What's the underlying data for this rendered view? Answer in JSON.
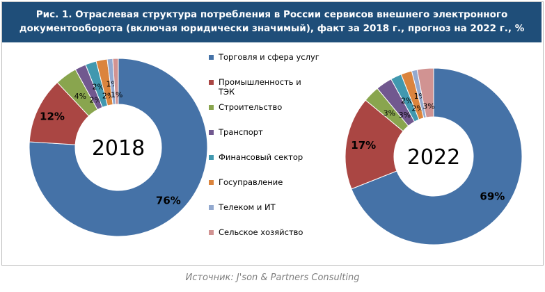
{
  "title": "Рис. 1. Отраслевая структура потребления в России сервисов внешнего электронного документооборота (включая юридически значимый), факт за 2018 г., прогноз на 2022 г., %",
  "source": "Источник: J'son & Partners Consulting",
  "chart_data": [
    {
      "type": "donut",
      "center_label": "2018",
      "categories": [
        "Торговля и сфера услуг",
        "Промышленность и ТЭК",
        "Строительство",
        "Транспорт",
        "Финансовый сектор",
        "Госуправление",
        "Телеком и ИТ",
        "Сельское хозяйство"
      ],
      "values": [
        76,
        12,
        4,
        2,
        2,
        2,
        1,
        1
      ],
      "data_labels": [
        "76%",
        "12%",
        "4%",
        "2%",
        "2%",
        "2%",
        "1%",
        "1%"
      ]
    },
    {
      "type": "donut",
      "center_label": "2022",
      "categories": [
        "Торговля и сфера услуг",
        "Промышленность и ТЭК",
        "Строительство",
        "Транспорт",
        "Финансовый сектор",
        "Госуправление",
        "Телеком и ИТ",
        "Сельское хозяйство"
      ],
      "values": [
        69,
        17,
        3,
        3,
        2,
        2,
        1,
        3
      ],
      "data_labels": [
        "69%",
        "17%",
        "3%",
        "3%",
        "2%",
        "2%",
        "1%",
        "3%"
      ]
    }
  ],
  "legend": {
    "position": "center",
    "items": [
      "Торговля и сфера услуг",
      "Промышленность и ТЭК",
      "Строительство",
      "Транспорт",
      "Финансовый сектор",
      "Госуправление",
      "Телеком и ИТ",
      "Сельское хозяйство"
    ]
  },
  "colors": [
    "#4572a7",
    "#aa4643",
    "#89a54e",
    "#71588f",
    "#4198af",
    "#db843d",
    "#93a9cf",
    "#d19392"
  ]
}
